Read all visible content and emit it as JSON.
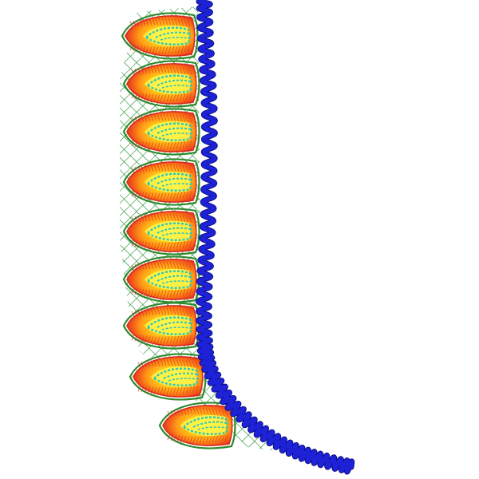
{
  "design": {
    "motif": "leaf",
    "leaf_count": 9,
    "palette": {
      "background": "#ffffff",
      "outline": "#2e8a2e",
      "leaf_dark": "#d8281e",
      "leaf_mid": "#ff7a12",
      "leaf_light": "#ffd21a",
      "leaf_core": "#fff64a",
      "vein": "#2fc7b8",
      "mesh": "#1f8f2f",
      "cord": "#1e22d6",
      "cord_dark": "#0b0f8a"
    }
  }
}
